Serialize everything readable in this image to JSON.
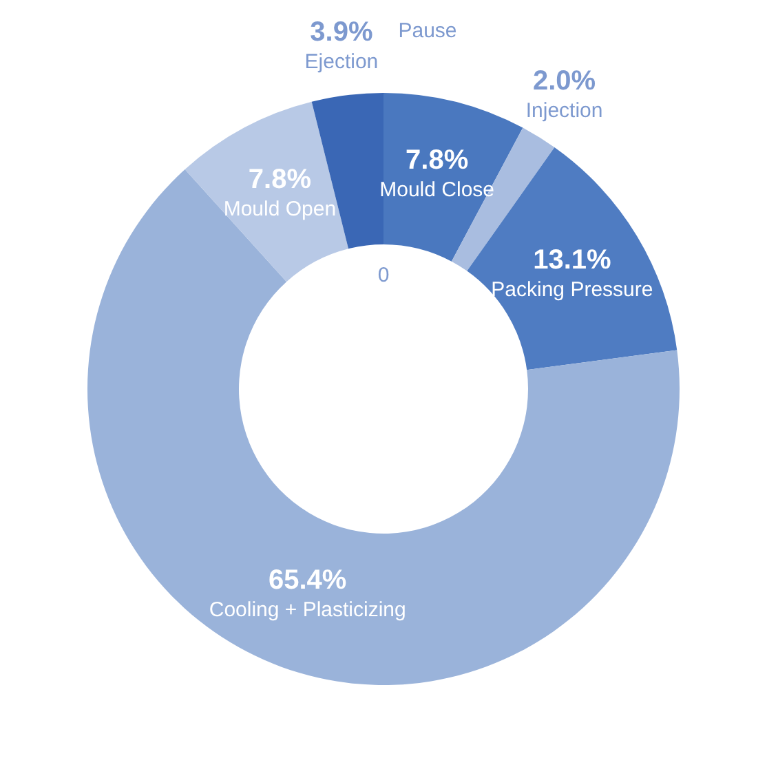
{
  "chart_data": {
    "type": "donut",
    "categories": [
      "Mould Close",
      "Injection",
      "Packing Pressure",
      "Cooling + Plasticizing",
      "Mould Open",
      "Ejection"
    ],
    "values": [
      7.8,
      2.0,
      13.1,
      65.4,
      7.8,
      3.9
    ],
    "colors": [
      "#4a78bf",
      "#a9bde0",
      "#4f7cc2",
      "#9ab3da",
      "#b8c9e6",
      "#3a67b5"
    ],
    "value_labels": [
      "7.8%",
      "2.0%",
      "13.1%",
      "65.4%",
      "7.8%",
      "3.9%"
    ],
    "annotations": [
      "Pause",
      "0"
    ]
  }
}
